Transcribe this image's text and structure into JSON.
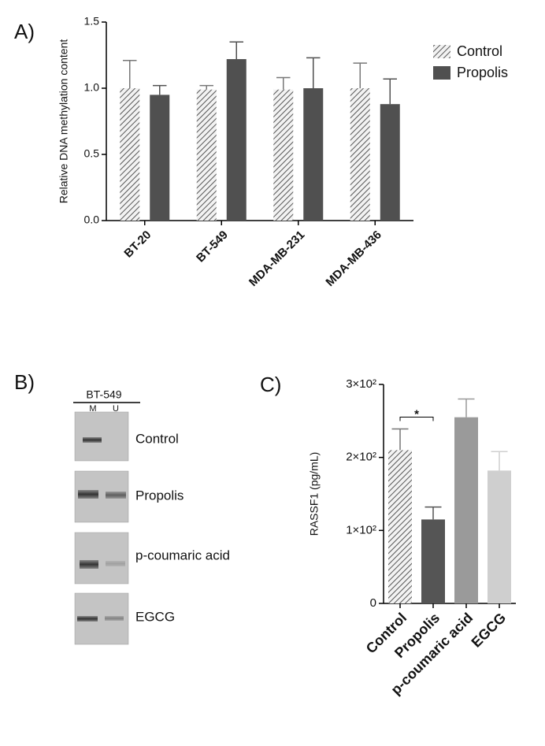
{
  "chart_data": [
    {
      "type": "bar",
      "panel_label": "A)",
      "y_label": "Relative DNA methylation content",
      "categories": [
        "BT-20",
        "BT-549",
        "MDA-MB-231",
        "MDA-MB-436"
      ],
      "series": [
        {
          "name": "Control",
          "color": "#555555",
          "pattern": "hatch",
          "values": [
            1.0,
            0.99,
            0.99,
            1.0
          ],
          "errors": [
            0.21,
            0.03,
            0.09,
            0.19
          ]
        },
        {
          "name": "Propolis",
          "color": "#505050",
          "pattern": "solid",
          "values": [
            0.95,
            1.22,
            1.0,
            0.88
          ],
          "errors": [
            0.07,
            0.13,
            0.23,
            0.19
          ]
        }
      ],
      "ylim": [
        0,
        1.5
      ],
      "yticks": [
        {
          "value": 0,
          "label": "0.0"
        },
        0.5,
        {
          "value": 1,
          "label": "1.0"
        },
        1.5
      ],
      "legend": "right"
    },
    {
      "type": "bar",
      "panel_label": "C)",
      "y_label": "RASSF1 (pg/mL)",
      "categories": [
        "Control",
        "Propolis",
        "p-coumaric acid",
        "EGCG"
      ],
      "values": [
        210,
        115,
        255,
        182
      ],
      "errors": [
        29,
        17,
        25,
        26
      ],
      "colors": [
        "#555555",
        "#555555",
        "#9a9a9a",
        "#cfcfcf"
      ],
      "patterns": [
        "hatch",
        "solid",
        "solid",
        "solid"
      ],
      "ylim": [
        0,
        300
      ],
      "yticks": [
        0,
        {
          "value": 100,
          "label": "1×10²"
        },
        {
          "value": 200,
          "label": "2×10²"
        },
        {
          "value": 300,
          "label": "3×10²"
        }
      ],
      "significance": {
        "label": "*",
        "between": [
          "Control",
          "Propolis"
        ]
      }
    }
  ],
  "gel": {
    "panel_label": "B)",
    "title": "BT-549",
    "lanes": [
      "M",
      "U"
    ],
    "rows": [
      "Control",
      "Propolis",
      "p-coumaric acid",
      "EGCG"
    ]
  }
}
